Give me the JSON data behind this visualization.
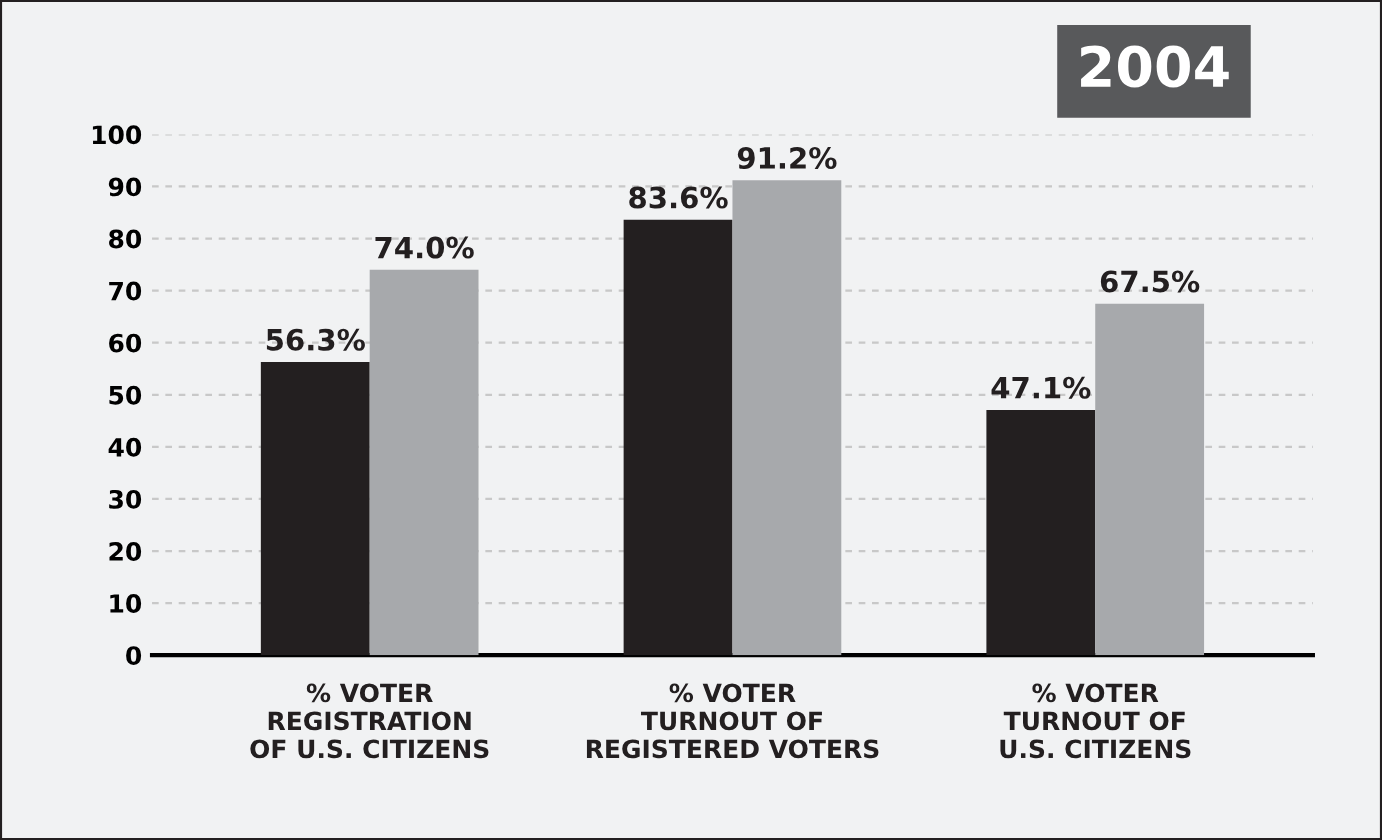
{
  "chart_data": {
    "type": "bar",
    "title": "2004",
    "categories": [
      "% VOTER\nREGISTRATION\nOF U.S. CITIZENS",
      "% VOTER\nTURNOUT OF\nREGISTERED VOTERS",
      "% VOTER\nTURNOUT OF\nU.S. CITIZENS"
    ],
    "series": [
      {
        "color": "#231f20",
        "values": [
          56.3,
          83.6,
          47.1
        ],
        "value_labels": [
          "56.3%",
          "83.6%",
          "47.1%"
        ]
      },
      {
        "color": "#a7a9ac",
        "values": [
          74.0,
          91.2,
          67.5
        ],
        "value_labels": [
          "74.0%",
          "91.2%",
          "67.5%"
        ]
      }
    ],
    "ylim": [
      0,
      100
    ],
    "yticks": [
      0,
      10,
      20,
      30,
      40,
      50,
      60,
      70,
      80,
      90,
      100
    ],
    "grid": "y",
    "legend": false
  }
}
